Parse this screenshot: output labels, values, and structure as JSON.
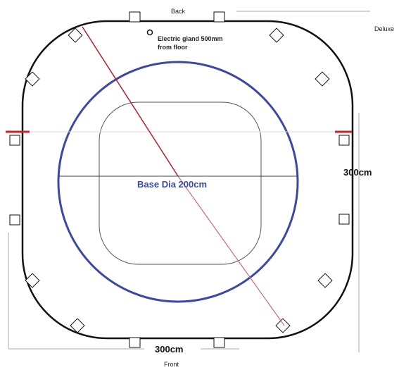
{
  "labels": {
    "back": "Back",
    "front": "Front",
    "model": "Deluxe",
    "gland_line1": "Electric gland 500mm",
    "gland_line2": "from floor",
    "base_dia": "Base Dia 200cm",
    "width_dim": "300cm",
    "height_dim": "300cm"
  },
  "colors": {
    "outline": "#111111",
    "base_circle": "#3b49a5",
    "diagonal": "#b51e2a",
    "edge_marker": "#c8232a",
    "dimension_line": "#aaaaaa"
  }
}
